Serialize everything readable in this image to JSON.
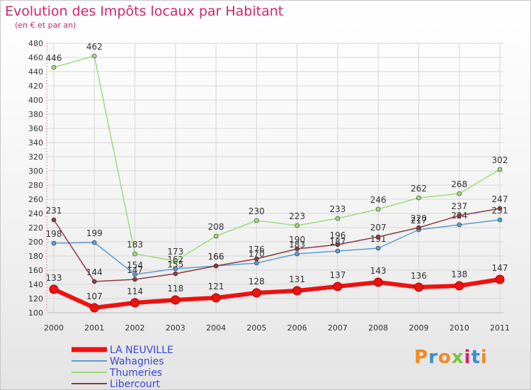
{
  "title": "Evolution des Impôts locaux par Habitant",
  "subtitle": "(en € et par an)",
  "logo": {
    "text": "Proxiti",
    "colors": [
      "#f28a1e",
      "#3a8fd0",
      "#f28a1e",
      "#7cc242",
      "#d2246b",
      "#3a8fd0",
      "#f28a1e"
    ]
  },
  "chart_data": {
    "type": "line",
    "x": [
      "2000",
      "2001",
      "2002",
      "2003",
      "2004",
      "2005",
      "2006",
      "2007",
      "2008",
      "2009",
      "2010",
      "2011"
    ],
    "ylim": [
      100,
      480
    ],
    "yticks": [
      100,
      120,
      140,
      160,
      180,
      200,
      220,
      240,
      260,
      280,
      300,
      320,
      340,
      360,
      380,
      400,
      420,
      440,
      460,
      480
    ],
    "grid": true,
    "legend": "bottom-left",
    "series": [
      {
        "name": "Wahagnies",
        "color": "#5b9bd5",
        "width": 1.5,
        "values": [
          198,
          199,
          154,
          162,
          166,
          170,
          183,
          187,
          191,
          217,
          224,
          231
        ],
        "labels": [
          198,
          199,
          154,
          162,
          166,
          170,
          183,
          187,
          191,
          217,
          224,
          231
        ]
      },
      {
        "name": "Thumeries",
        "color": "#9fdb7c",
        "width": 1.5,
        "values": [
          446,
          462,
          183,
          173,
          208,
          230,
          223,
          233,
          246,
          262,
          268,
          302
        ],
        "labels": [
          446,
          462,
          183,
          173,
          208,
          230,
          223,
          233,
          246,
          262,
          268,
          302
        ]
      },
      {
        "name": "Libercourt",
        "color": "#8a3a42",
        "width": 1.5,
        "values": [
          231,
          144,
          147,
          155,
          166,
          176,
          190,
          196,
          207,
          220,
          237,
          247
        ],
        "labels": [
          231,
          144,
          147,
          155,
          166,
          176,
          190,
          196,
          207,
          220,
          237,
          247
        ]
      },
      {
        "name": "LA NEUVILLE",
        "color": "#ee1111",
        "width": 6,
        "values": [
          133,
          107,
          114,
          118,
          121,
          128,
          131,
          137,
          143,
          136,
          138,
          147
        ],
        "labels": [
          133,
          107,
          114,
          118,
          121,
          128,
          131,
          137,
          143,
          136,
          138,
          147
        ]
      }
    ],
    "legend_order": [
      "LA NEUVILLE",
      "Wahagnies",
      "Thumeries",
      "Libercourt"
    ],
    "legend_label_color": "#3a46d6"
  }
}
